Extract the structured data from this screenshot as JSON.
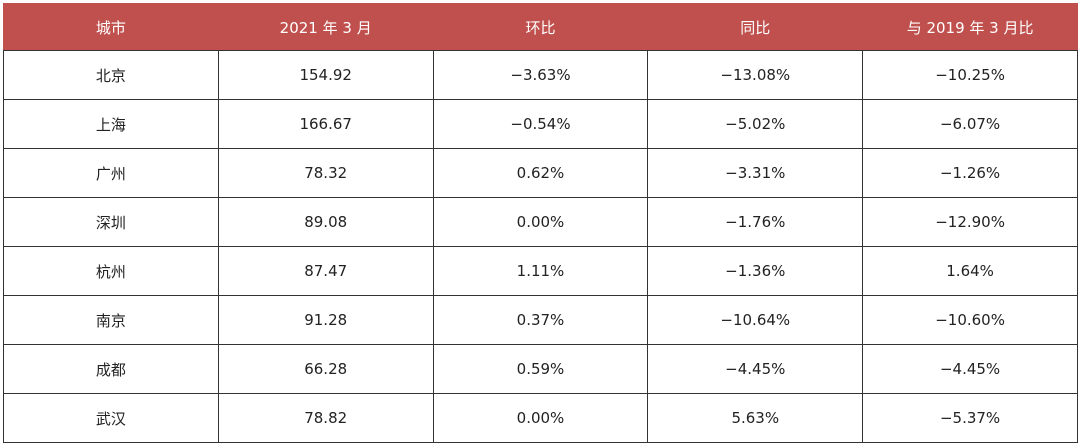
{
  "table": {
    "header": [
      "城市",
      "2021 年 3 月",
      "环比",
      "同比",
      "与 2019 年 3 月比"
    ],
    "rows": [
      [
        "北京",
        "154.92",
        "−3.63%",
        "−13.08%",
        "−10.25%"
      ],
      [
        "上海",
        "166.67",
        "−0.54%",
        "−5.02%",
        "−6.07%"
      ],
      [
        "广州",
        "78.32",
        "0.62%",
        "−3.31%",
        "−1.26%"
      ],
      [
        "深圳",
        "89.08",
        "0.00%",
        "−1.76%",
        "−12.90%"
      ],
      [
        "杭州",
        "87.47",
        "1.11%",
        "−1.36%",
        "1.64%"
      ],
      [
        "南京",
        "91.28",
        "0.37%",
        "−10.64%",
        "−10.60%"
      ],
      [
        "成都",
        "66.28",
        "0.59%",
        "−4.45%",
        "−4.45%"
      ],
      [
        "武汉",
        "78.82",
        "0.00%",
        "5.63%",
        "−5.37%"
      ]
    ]
  }
}
